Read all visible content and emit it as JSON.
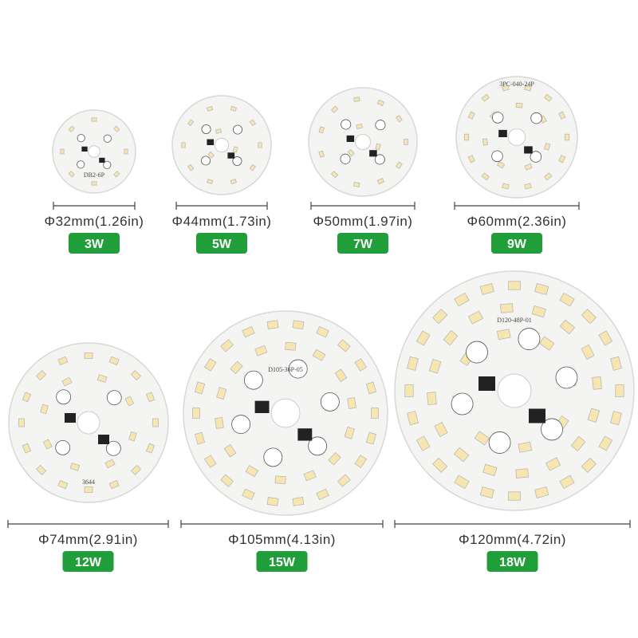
{
  "items": [
    {
      "size": "Φ32mm(1.26in)",
      "power": "3W",
      "board_text": "DB2-6P"
    },
    {
      "size": "Φ44mm(1.73in)",
      "power": "5W"
    },
    {
      "size": "Φ50mm(1.97in)",
      "power": "7W"
    },
    {
      "size": "Φ60mm(2.36in)",
      "power": "9W",
      "board_text": "3PC-040-24P"
    },
    {
      "size": "Φ74mm(2.91in)",
      "power": "12W",
      "board_text": "3644"
    },
    {
      "size": "Φ105mm(4.13in)",
      "power": "15W",
      "board_text": "D105-36P-05"
    },
    {
      "size": "Φ120mm(4.72in)",
      "power": "18W",
      "board_text": "D120-48P-01"
    }
  ]
}
